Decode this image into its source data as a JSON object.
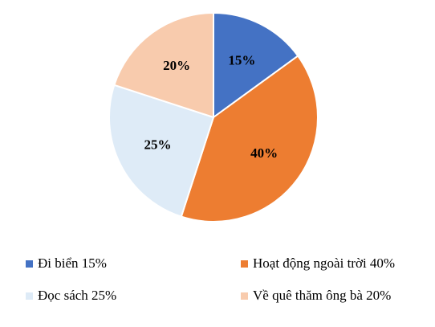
{
  "chart_data": {
    "type": "pie",
    "title": "",
    "categories": [
      "Đi biển",
      "Hoạt động ngoài trời",
      "Đọc sách",
      "Về quê thăm ông bà"
    ],
    "values": [
      15,
      40,
      25,
      20
    ],
    "unit": "%",
    "data_labels": [
      "15%",
      "40%",
      "25%",
      "20%"
    ],
    "colors": [
      "#4472C4",
      "#ED7D31",
      "#DEEBF7",
      "#F8CBAD"
    ],
    "start_direction": "12 o'clock, clockwise",
    "legend": {
      "placement": "bottom",
      "entries": [
        "Đi biển 15%",
        "Hoạt động ngoài trời 40%",
        "Đọc sách 25%",
        "Về quê thăm ông bà 20%"
      ]
    }
  }
}
